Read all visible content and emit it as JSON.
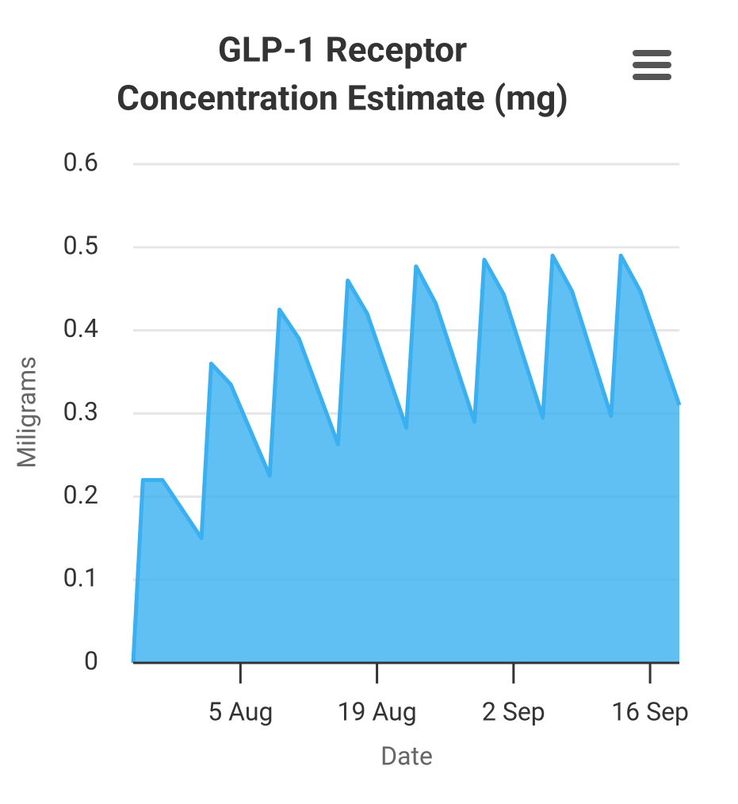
{
  "chart_data": {
    "type": "area",
    "title": [
      "GLP-1 Receptor",
      "Concentration Estimate (mg)"
    ],
    "x_label": "Date",
    "y_label": "Miligrams",
    "x": [
      "25 Jul",
      "26 Jul",
      "28 Jul",
      "1 Aug",
      "2 Aug",
      "4 Aug",
      "8 Aug",
      "9 Aug",
      "11 Aug",
      "15 Aug",
      "16 Aug",
      "18 Aug",
      "22 Aug",
      "23 Aug",
      "25 Aug",
      "29 Aug",
      "30 Aug",
      "1 Sep",
      "5 Sep",
      "6 Sep",
      "8 Sep",
      "12 Sep",
      "13 Sep",
      "15 Sep",
      "19 Sep"
    ],
    "series": [
      {
        "name": "Concentration",
        "color": "#3ab0f0",
        "values": [
          0,
          0.22,
          0.22,
          0.15,
          0.36,
          0.335,
          0.225,
          0.425,
          0.39,
          0.263,
          0.46,
          0.42,
          0.283,
          0.477,
          0.433,
          0.29,
          0.485,
          0.443,
          0.295,
          0.49,
          0.447,
          0.297,
          0.49,
          0.447,
          0.31
        ]
      }
    ],
    "xlim": [
      "25 Jul",
      "19 Sep"
    ],
    "xticks": [
      "5 Aug",
      "19 Aug",
      "2 Sep",
      "16 Sep"
    ],
    "ylim": [
      0,
      0.6
    ],
    "yticks": [
      0,
      0.1,
      0.2,
      0.3,
      0.4,
      0.5,
      0.6
    ],
    "grid": true
  }
}
